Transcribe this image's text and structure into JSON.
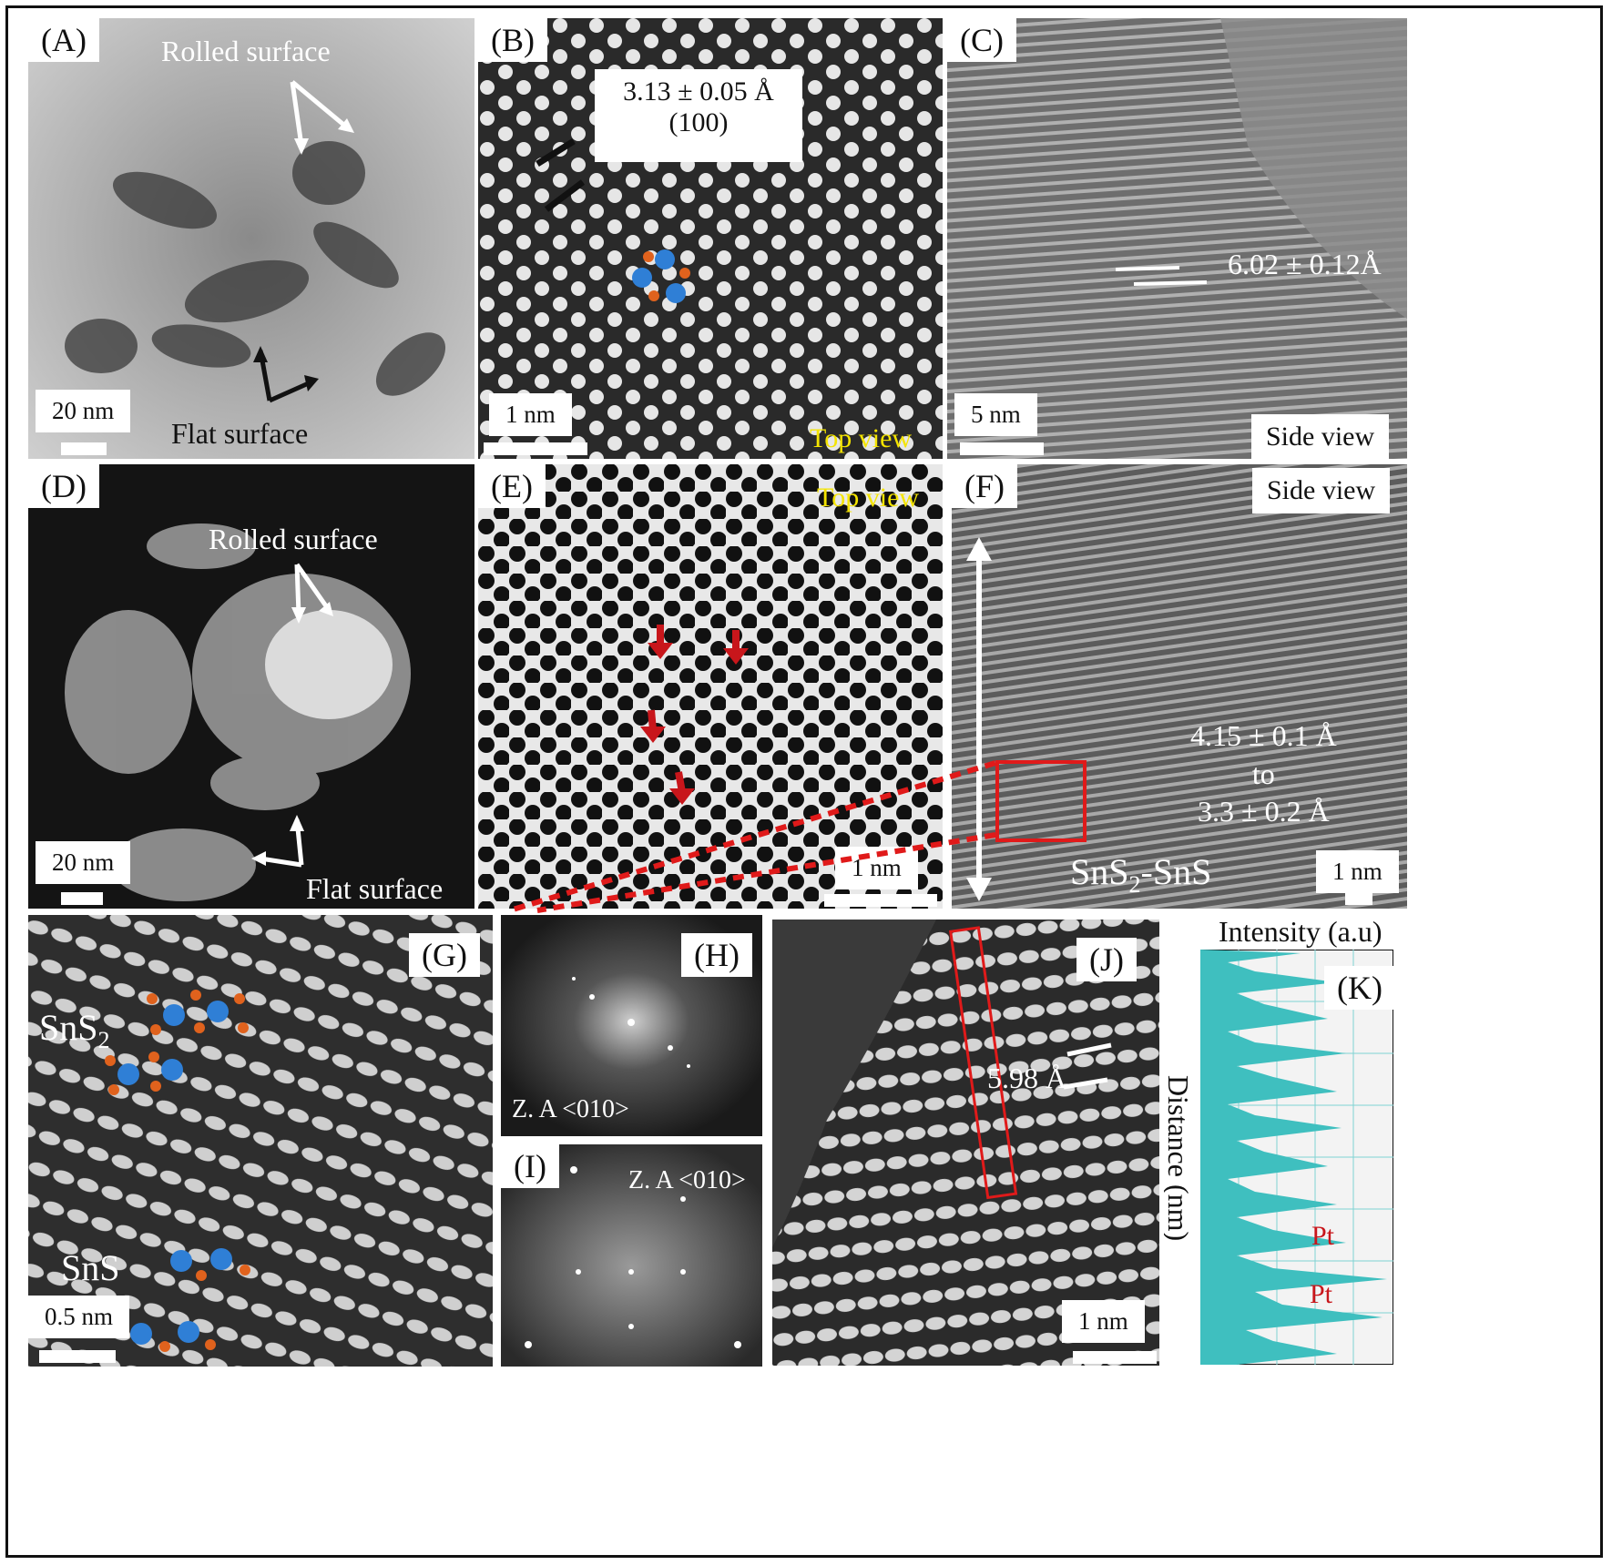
{
  "panels": {
    "A": {
      "label": "(A)",
      "scale": "20 nm",
      "rolled": "Rolled surface",
      "flat": "Flat surface"
    },
    "B": {
      "label": "(B)",
      "scale": "1 nm",
      "spacing": "3.13 ± 0.05 Å",
      "plane": "(100)",
      "view": "Top view"
    },
    "C": {
      "label": "(C)",
      "scale": "5 nm",
      "spacing": "6.02 ± 0.12Å",
      "view": "Side view"
    },
    "D": {
      "label": "(D)",
      "scale": "20 nm",
      "rolled": "Rolled surface",
      "flat": "Flat surface"
    },
    "E": {
      "label": "(E)",
      "scale": "1 nm",
      "view": "Top view"
    },
    "F": {
      "label": "(F)",
      "scale": "1 nm",
      "view": "Side view",
      "d1": "4.15 ± 0.1 Å",
      "to": "to",
      "d2": "3.3 ± 0.2 Å",
      "phase_main": "SnS",
      "phase_sub": "2",
      "phase_rest": "-SnS"
    },
    "G": {
      "label": "(G)",
      "scale": "0.5 nm",
      "sns2_main": "SnS",
      "sns2_sub": "2",
      "sns": "SnS"
    },
    "H": {
      "label": "(H)",
      "za": "Z. A <010>"
    },
    "I": {
      "label": "(I)",
      "za": "Z. A <010>"
    },
    "J": {
      "label": "(J)",
      "scale": "1 nm",
      "spacing": "5.98 Å"
    },
    "K": {
      "label": "(K)",
      "xlabel": "Intensity (a.u)",
      "ylabel": "Distance (nm)",
      "pt1": "Pt",
      "pt2": "Pt"
    }
  },
  "colors": {
    "sn": "#2f7fd6",
    "s": "#e0621d",
    "arrow_red": "#c8161b",
    "cyan": "#3fbfbf",
    "yellow": "#f4e400"
  }
}
